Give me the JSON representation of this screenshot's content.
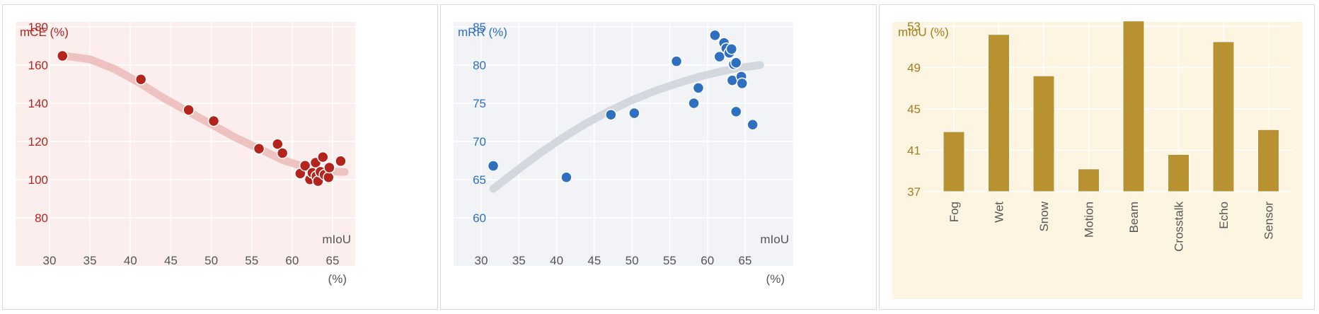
{
  "chart_data": [
    {
      "type": "scatter",
      "ylabel": "mCE (%)",
      "xlabel": [
        "mIoU",
        "(%)"
      ],
      "xlim": [
        30,
        67
      ],
      "ylim": [
        80,
        190
      ],
      "xticks": [
        30,
        35,
        40,
        45,
        50,
        55,
        60,
        65
      ],
      "yticks": [
        80,
        100,
        120,
        140,
        160,
        180
      ],
      "grid": true,
      "colors": {
        "background": "#fdeeee",
        "grid": "#ffffff",
        "point": "#b3241c",
        "point_edge": "#ffffff",
        "trend": "#eec2c0",
        "text": "#b3241c",
        "axis_text": "#555555"
      },
      "points": [
        {
          "x": 31.6,
          "y": 164.8
        },
        {
          "x": 41.3,
          "y": 152.5
        },
        {
          "x": 47.2,
          "y": 136.5
        },
        {
          "x": 50.3,
          "y": 130.7
        },
        {
          "x": 55.9,
          "y": 116.2
        },
        {
          "x": 58.2,
          "y": 118.6
        },
        {
          "x": 58.8,
          "y": 113.9
        },
        {
          "x": 61.0,
          "y": 103.2
        },
        {
          "x": 61.6,
          "y": 107.3
        },
        {
          "x": 62.2,
          "y": 100.1
        },
        {
          "x": 62.5,
          "y": 103.6
        },
        {
          "x": 62.9,
          "y": 108.9
        },
        {
          "x": 63.0,
          "y": 101.8
        },
        {
          "x": 63.2,
          "y": 99.2
        },
        {
          "x": 63.5,
          "y": 104.1
        },
        {
          "x": 63.8,
          "y": 111.8
        },
        {
          "x": 64.0,
          "y": 102.6
        },
        {
          "x": 64.5,
          "y": 101.2
        },
        {
          "x": 64.6,
          "y": 106.3
        },
        {
          "x": 66.0,
          "y": 109.7
        }
      ],
      "trend": [
        {
          "x": 31.6,
          "y": 165
        },
        {
          "x": 35,
          "y": 163
        },
        {
          "x": 38,
          "y": 158
        },
        {
          "x": 41,
          "y": 151
        },
        {
          "x": 44,
          "y": 143
        },
        {
          "x": 47,
          "y": 136
        },
        {
          "x": 50,
          "y": 129
        },
        {
          "x": 53,
          "y": 122
        },
        {
          "x": 56,
          "y": 116
        },
        {
          "x": 59,
          "y": 110
        },
        {
          "x": 62,
          "y": 106
        },
        {
          "x": 64,
          "y": 104.5
        },
        {
          "x": 66.5,
          "y": 104
        }
      ]
    },
    {
      "type": "scatter",
      "ylabel": "mRR (%)",
      "xlabel": [
        "mIoU",
        "(%)"
      ],
      "xlim": [
        30,
        67
      ],
      "ylim": [
        60,
        88
      ],
      "xticks": [
        30,
        35,
        40,
        45,
        50,
        55,
        60,
        65
      ],
      "yticks": [
        60,
        65,
        70,
        75,
        80,
        85
      ],
      "grid": true,
      "colors": {
        "background": "#f1f3f6",
        "grid": "#ffffff",
        "point": "#2e6fbf",
        "point_edge": "#ffffff",
        "trend": "#d3d8de",
        "text": "#2e6fbf",
        "axis_text": "#555555"
      },
      "points": [
        {
          "x": 31.6,
          "y": 66.8
        },
        {
          "x": 41.3,
          "y": 65.3
        },
        {
          "x": 47.2,
          "y": 73.5
        },
        {
          "x": 50.3,
          "y": 73.7
        },
        {
          "x": 55.9,
          "y": 80.5
        },
        {
          "x": 58.2,
          "y": 75.0
        },
        {
          "x": 58.8,
          "y": 77.0
        },
        {
          "x": 61.0,
          "y": 83.9
        },
        {
          "x": 61.6,
          "y": 81.1
        },
        {
          "x": 62.2,
          "y": 82.9
        },
        {
          "x": 62.5,
          "y": 82.2
        },
        {
          "x": 62.9,
          "y": 81.6
        },
        {
          "x": 63.2,
          "y": 82.1
        },
        {
          "x": 63.3,
          "y": 78.0
        },
        {
          "x": 63.5,
          "y": 80.1
        },
        {
          "x": 63.8,
          "y": 80.3
        },
        {
          "x": 63.8,
          "y": 73.9
        },
        {
          "x": 64.5,
          "y": 78.5
        },
        {
          "x": 64.6,
          "y": 77.6
        },
        {
          "x": 66.0,
          "y": 72.2
        }
      ],
      "trend": [
        {
          "x": 31.6,
          "y": 63.8
        },
        {
          "x": 35,
          "y": 66.4
        },
        {
          "x": 38,
          "y": 68.6
        },
        {
          "x": 41,
          "y": 70.6
        },
        {
          "x": 44,
          "y": 72.4
        },
        {
          "x": 47,
          "y": 74.0
        },
        {
          "x": 50,
          "y": 75.4
        },
        {
          "x": 53,
          "y": 76.6
        },
        {
          "x": 56,
          "y": 77.6
        },
        {
          "x": 59,
          "y": 78.5
        },
        {
          "x": 62,
          "y": 79.2
        },
        {
          "x": 64,
          "y": 79.6
        },
        {
          "x": 67,
          "y": 80.0
        }
      ]
    },
    {
      "type": "bar",
      "ylabel": "mIoU (%)",
      "categories": [
        "Fog",
        "Wet",
        "Snow",
        "Motion",
        "Beam",
        "Crosstalk",
        "Echo",
        "Sensor"
      ],
      "values": [
        42.8,
        52.2,
        48.2,
        39.2,
        53.5,
        40.6,
        51.5,
        43.0
      ],
      "ylim": [
        37,
        55
      ],
      "yticks": [
        37,
        41,
        45,
        49,
        53
      ],
      "grid": true,
      "colors": {
        "background": "#fdf5e1",
        "grid": "#ffffff",
        "bar": "#b89130",
        "bar_edge": "#ffffff",
        "text": "#a07f20",
        "axis_text": "#555555"
      }
    }
  ]
}
